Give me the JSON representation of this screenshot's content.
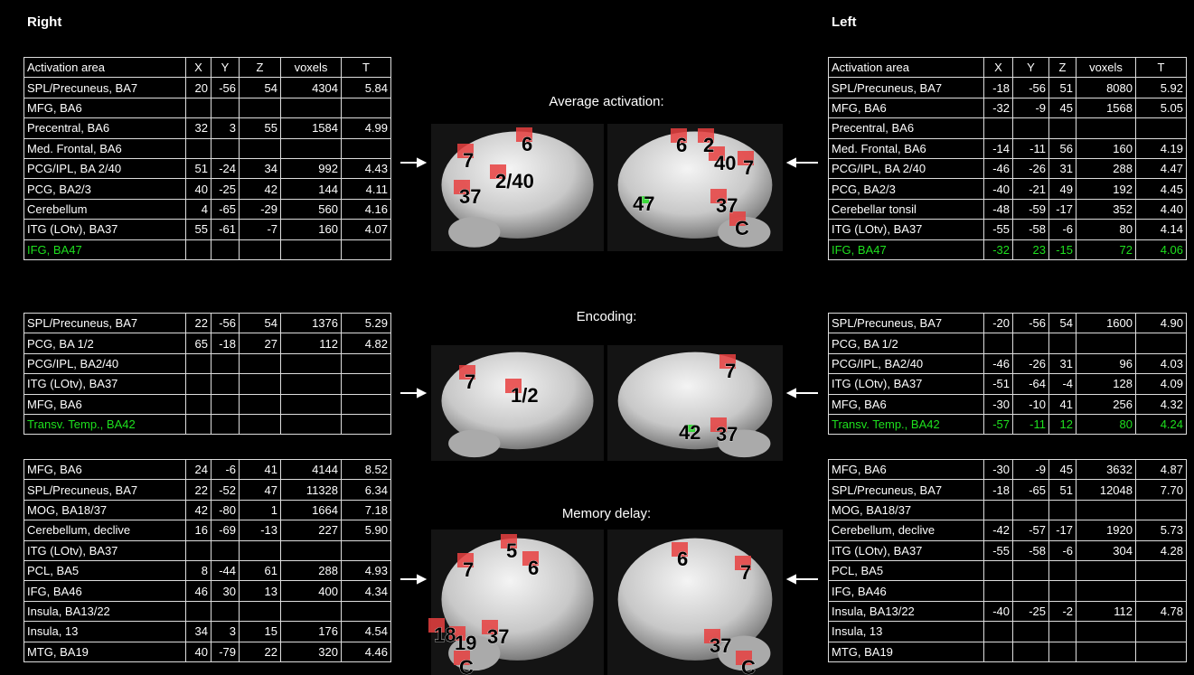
{
  "header": {
    "right": "Right",
    "left": "Left"
  },
  "column_headers": [
    "Activation area",
    "X",
    "Y",
    "Z",
    "voxels",
    "T"
  ],
  "sections": [
    {
      "title": "Average activation:",
      "right_table": {
        "highlight_rows": [
          8
        ],
        "rows": [
          [
            "SPL/Precuneus, BA7",
            "20",
            "-56",
            "54",
            "4304",
            "5.84"
          ],
          [
            "MFG, BA6",
            null,
            null,
            null,
            null,
            null
          ],
          [
            "Precentral, BA6",
            "32",
            "3",
            "55",
            "1584",
            "4.99"
          ],
          [
            "Med. Frontal, BA6",
            null,
            null,
            null,
            null,
            null
          ],
          [
            "PCG/IPL, BA 2/40",
            "51",
            "-24",
            "34",
            "992",
            "4.43"
          ],
          [
            "PCG, BA2/3",
            "40",
            "-25",
            "42",
            "144",
            "4.11"
          ],
          [
            "Cerebellum",
            "4",
            "-65",
            "-29",
            "560",
            "4.16"
          ],
          [
            "ITG (LOtv), BA37",
            "55",
            "-61",
            "-7",
            "160",
            "4.07"
          ],
          [
            "IFG, BA47",
            null,
            null,
            null,
            null,
            null
          ]
        ]
      },
      "left_table": {
        "highlight_rows": [
          8
        ],
        "rows": [
          [
            "SPL/Precuneus, BA7",
            "-18",
            "-56",
            "51",
            "8080",
            "5.92"
          ],
          [
            "MFG, BA6",
            "-32",
            "-9",
            "45",
            "1568",
            "5.05"
          ],
          [
            "Precentral, BA6",
            null,
            null,
            null,
            null,
            null
          ],
          [
            "Med. Frontal, BA6",
            "-14",
            "-11",
            "56",
            "160",
            "4.19"
          ],
          [
            "PCG/IPL, BA 2/40",
            "-46",
            "-26",
            "31",
            "288",
            "4.47"
          ],
          [
            "PCG, BA2/3",
            "-40",
            "-21",
            "49",
            "192",
            "4.45"
          ],
          [
            "Cerebellar tonsil",
            "-48",
            "-59",
            "-17",
            "352",
            "4.40"
          ],
          [
            "ITG (LOtv), BA37",
            "-55",
            "-58",
            "-6",
            "80",
            "4.14"
          ],
          [
            "IFG, BA47",
            "-32",
            "23",
            "-15",
            "72",
            "4.06"
          ]
        ]
      },
      "right_brain_labels": [
        "7",
        "6",
        "2/40",
        "37"
      ],
      "left_brain_labels": [
        "6",
        "2",
        "40",
        "7",
        "47",
        "37",
        "C"
      ]
    },
    {
      "title": "Encoding:",
      "right_table": {
        "highlight_rows": [
          5
        ],
        "rows": [
          [
            "SPL/Precuneus, BA7",
            "22",
            "-56",
            "54",
            "1376",
            "5.29"
          ],
          [
            "PCG, BA 1/2",
            "65",
            "-18",
            "27",
            "112",
            "4.82"
          ],
          [
            "PCG/IPL, BA2/40",
            null,
            null,
            null,
            null,
            null
          ],
          [
            "ITG (LOtv), BA37",
            null,
            null,
            null,
            null,
            null
          ],
          [
            "MFG, BA6",
            null,
            null,
            null,
            null,
            null
          ],
          [
            "Transv. Temp., BA42",
            null,
            null,
            null,
            null,
            null
          ]
        ]
      },
      "left_table": {
        "highlight_rows": [
          5
        ],
        "rows": [
          [
            "SPL/Precuneus, BA7",
            "-20",
            "-56",
            "54",
            "1600",
            "4.90"
          ],
          [
            "PCG, BA 1/2",
            null,
            null,
            null,
            null,
            null
          ],
          [
            "PCG/IPL, BA2/40",
            "-46",
            "-26",
            "31",
            "96",
            "4.03"
          ],
          [
            "ITG (LOtv), BA37",
            "-51",
            "-64",
            "-4",
            "128",
            "4.09"
          ],
          [
            "MFG, BA6",
            "-30",
            "-10",
            "41",
            "256",
            "4.32"
          ],
          [
            "Transv. Temp., BA42",
            "-57",
            "-11",
            "12",
            "80",
            "4.24"
          ]
        ]
      },
      "right_brain_labels": [
        "7",
        "1/2"
      ],
      "left_brain_labels": [
        "7",
        "42",
        "37"
      ]
    },
    {
      "title": "Memory delay:",
      "right_table": {
        "highlight_rows": [],
        "rows": [
          [
            "MFG, BA6",
            "24",
            "-6",
            "41",
            "4144",
            "8.52"
          ],
          [
            "SPL/Precuneus, BA7",
            "22",
            "-52",
            "47",
            "11328",
            "6.34"
          ],
          [
            "MOG, BA18/37",
            "42",
            "-80",
            "1",
            "1664",
            "7.18"
          ],
          [
            "Cerebellum, declive",
            "16",
            "-69",
            "-13",
            "227",
            "5.90"
          ],
          [
            "ITG (LOtv), BA37",
            null,
            null,
            null,
            null,
            null
          ],
          [
            "PCL, BA5",
            "8",
            "-44",
            "61",
            "288",
            "4.93"
          ],
          [
            "IFG, BA46",
            "46",
            "30",
            "13",
            "400",
            "4.34"
          ],
          [
            "Insula, BA13/22",
            null,
            null,
            null,
            null,
            null
          ],
          [
            "Insula, 13",
            "34",
            "3",
            "15",
            "176",
            "4.54"
          ],
          [
            "MTG, BA19",
            "40",
            "-79",
            "22",
            "320",
            "4.46"
          ]
        ]
      },
      "left_table": {
        "highlight_rows": [],
        "rows": [
          [
            "MFG, BA6",
            "-30",
            "-9",
            "45",
            "3632",
            "4.87"
          ],
          [
            "SPL/Precuneus, BA7",
            "-18",
            "-65",
            "51",
            "12048",
            "7.70"
          ],
          [
            "MOG, BA18/37",
            null,
            null,
            null,
            null,
            null
          ],
          [
            "Cerebellum, declive",
            "-42",
            "-57",
            "-17",
            "1920",
            "5.73"
          ],
          [
            "ITG (LOtv), BA37",
            "-55",
            "-58",
            "-6",
            "304",
            "4.28"
          ],
          [
            "PCL, BA5",
            null,
            null,
            null,
            null,
            null
          ],
          [
            "IFG, BA46",
            null,
            null,
            null,
            null,
            null
          ],
          [
            "Insula, BA13/22",
            "-40",
            "-25",
            "-2",
            "112",
            "4.78"
          ],
          [
            "Insula, 13",
            null,
            null,
            null,
            null,
            null
          ],
          [
            "MTG, BA19",
            null,
            null,
            null,
            null,
            null
          ]
        ]
      },
      "right_brain_labels": [
        "7",
        "5",
        "6",
        "18",
        "19",
        "37",
        "C"
      ],
      "left_brain_labels": [
        "6",
        "7",
        "37",
        "C"
      ]
    }
  ]
}
